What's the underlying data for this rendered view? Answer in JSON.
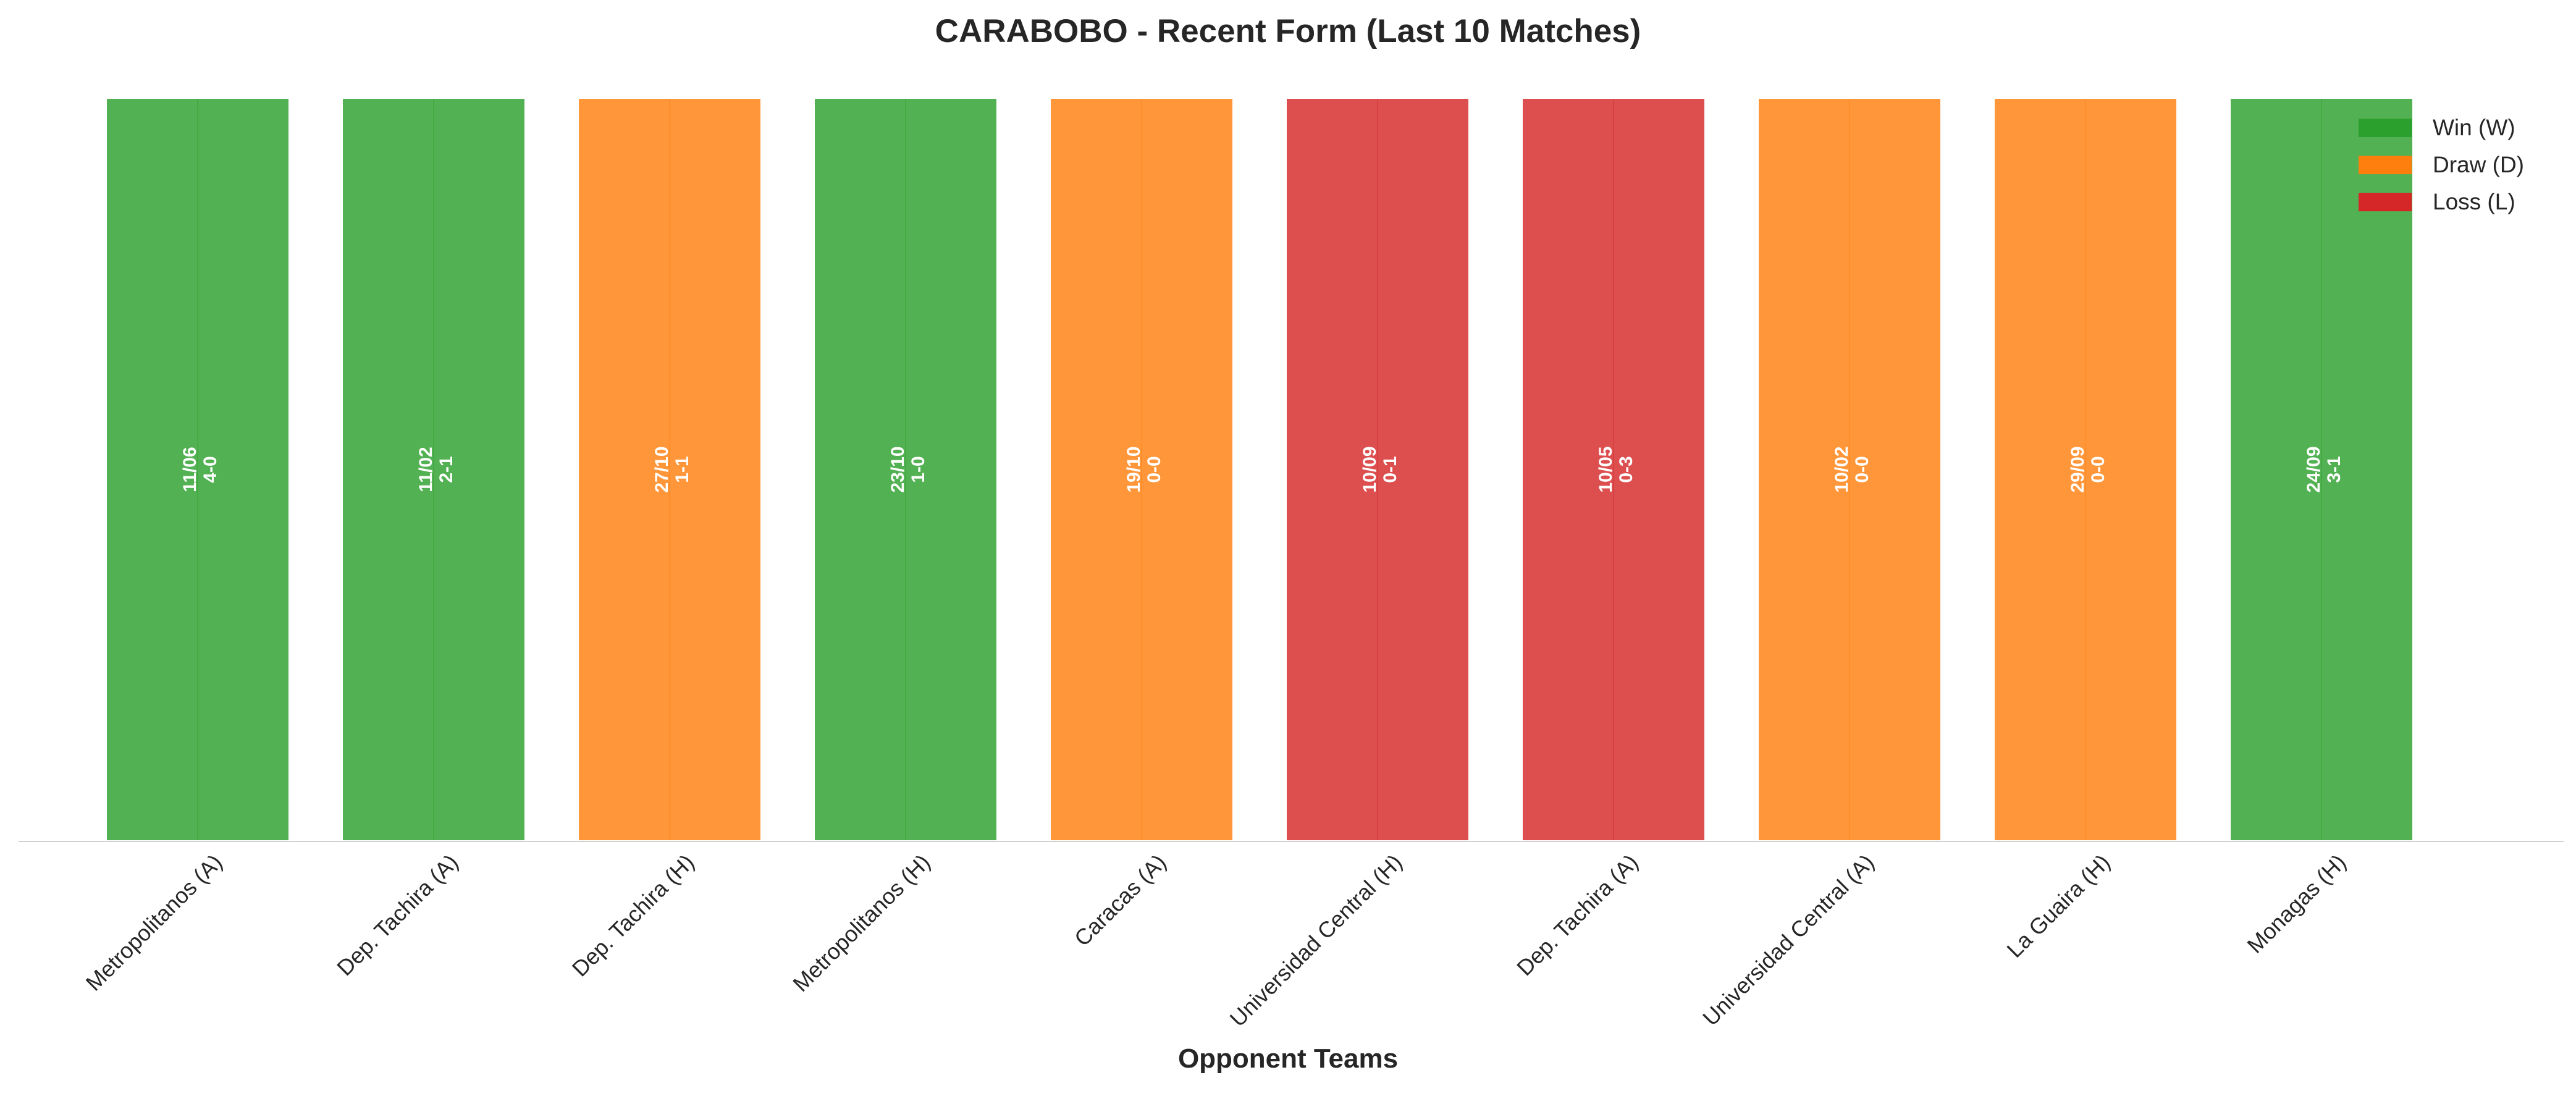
{
  "chart_data": {
    "type": "bar",
    "title": "CARABOBO - Recent Form (Last 10 Matches)",
    "xlabel": "Opponent Teams",
    "ylabel": "",
    "ylim": [
      0,
      1
    ],
    "grid": false,
    "legend_position": "top-right",
    "categories": [
      "Metropolitanos (A)",
      "Dep. Tachira (A)",
      "Dep. Tachira (H)",
      "Metropolitanos (H)",
      "Caracas (A)",
      "Universidad Central (H)",
      "Dep. Tachira (A)",
      "Universidad Central (A)",
      "La Guaira (H)",
      "Monagas (H)"
    ],
    "values": [
      1,
      1,
      1,
      1,
      1,
      1,
      1,
      1,
      1,
      1
    ],
    "results": [
      "W",
      "W",
      "D",
      "W",
      "D",
      "L",
      "L",
      "D",
      "D",
      "W"
    ],
    "dates": [
      "11/06",
      "11/02",
      "27/10",
      "23/10",
      "19/10",
      "10/09",
      "10/05",
      "10/02",
      "29/09",
      "24/09"
    ],
    "scores": [
      "4-0",
      "2-1",
      "1-1",
      "1-0",
      "0-0",
      "0-1",
      "0-3",
      "0-0",
      "0-0",
      "3-1"
    ],
    "legend": [
      {
        "key": "W",
        "label": "Win (W)",
        "color": "#2ca02c"
      },
      {
        "key": "D",
        "label": "Draw (D)",
        "color": "#ff7f0e"
      },
      {
        "key": "L",
        "label": "Loss (L)",
        "color": "#d62728"
      }
    ]
  }
}
